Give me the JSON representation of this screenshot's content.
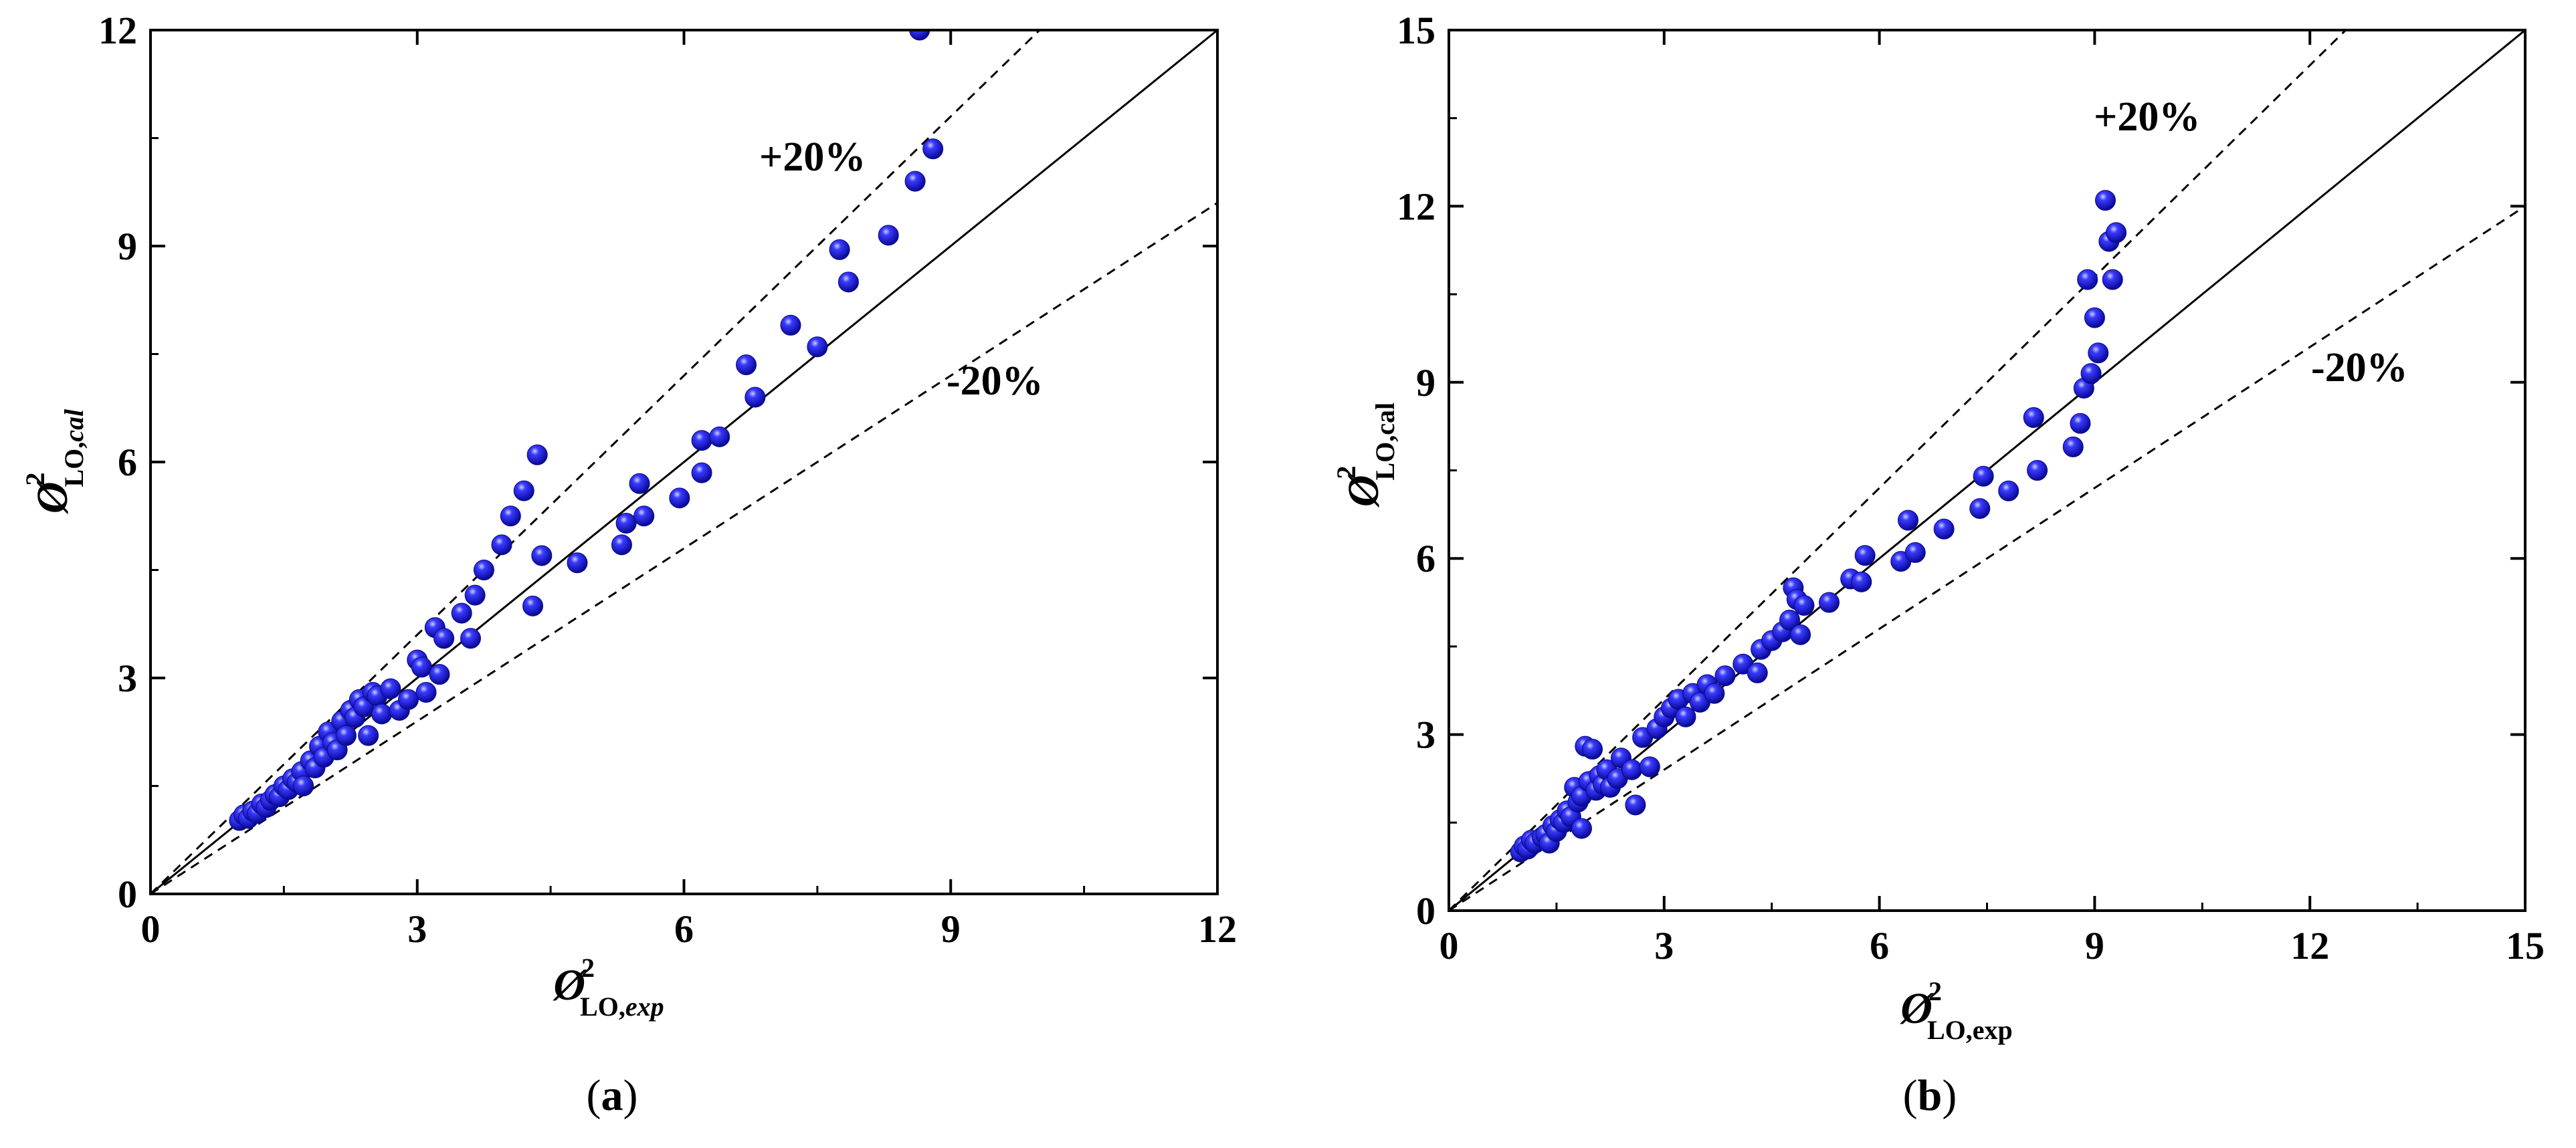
{
  "chart_data": [
    {
      "panel": "a",
      "type": "scatter",
      "caption": "a",
      "xlabel": {
        "symbol": "Ø",
        "sup": "2",
        "sub_main": "LO,",
        "sub_italic": "exp"
      },
      "ylabel": {
        "symbol": "Ø",
        "sup": "2",
        "sub_main": "LO,",
        "sub_italic": "cal"
      },
      "xlim": [
        0,
        12
      ],
      "ylim": [
        0,
        12
      ],
      "xticks": [
        0,
        3,
        6,
        9,
        12
      ],
      "yticks": [
        0,
        3,
        6,
        9,
        12
      ],
      "xtick_labels": [
        "0",
        "3",
        "6",
        "9",
        "12"
      ],
      "ytick_labels": [
        "0",
        "3",
        "6",
        "9",
        "12"
      ],
      "reference_lines": [
        {
          "name": "parity",
          "slope": 1.0,
          "style": "solid"
        },
        {
          "name": "+20%",
          "slope": 1.2,
          "style": "dashed"
        },
        {
          "name": "-20%",
          "slope": 0.8,
          "style": "dashed"
        }
      ],
      "annotations": {
        "plus": "+20%",
        "minus": "-20%"
      },
      "series": [
        {
          "name": "data",
          "color": "#1a1af0",
          "points": [
            [
              1.0,
              1.02
            ],
            [
              1.05,
              1.1
            ],
            [
              1.1,
              1.05
            ],
            [
              1.15,
              1.15
            ],
            [
              1.2,
              1.12
            ],
            [
              1.25,
              1.25
            ],
            [
              1.3,
              1.2
            ],
            [
              1.35,
              1.3
            ],
            [
              1.4,
              1.38
            ],
            [
              1.45,
              1.35
            ],
            [
              1.5,
              1.5
            ],
            [
              1.55,
              1.45
            ],
            [
              1.6,
              1.6
            ],
            [
              1.65,
              1.55
            ],
            [
              1.7,
              1.7
            ],
            [
              1.72,
              1.5
            ],
            [
              1.8,
              1.85
            ],
            [
              1.85,
              1.75
            ],
            [
              1.9,
              2.05
            ],
            [
              1.95,
              1.9
            ],
            [
              2.0,
              2.25
            ],
            [
              2.05,
              2.1
            ],
            [
              2.1,
              2.0
            ],
            [
              2.15,
              2.4
            ],
            [
              2.2,
              2.2
            ],
            [
              2.25,
              2.55
            ],
            [
              2.3,
              2.45
            ],
            [
              2.35,
              2.7
            ],
            [
              2.4,
              2.6
            ],
            [
              2.45,
              2.2
            ],
            [
              2.5,
              2.8
            ],
            [
              2.55,
              2.75
            ],
            [
              2.6,
              2.5
            ],
            [
              2.7,
              2.85
            ],
            [
              2.8,
              2.55
            ],
            [
              2.9,
              2.7
            ],
            [
              3.0,
              3.25
            ],
            [
              3.05,
              3.15
            ],
            [
              3.1,
              2.8
            ],
            [
              3.2,
              3.7
            ],
            [
              3.3,
              3.55
            ],
            [
              3.25,
              3.05
            ],
            [
              3.5,
              3.9
            ],
            [
              3.6,
              3.55
            ],
            [
              3.65,
              4.15
            ],
            [
              3.75,
              4.5
            ],
            [
              3.95,
              4.85
            ],
            [
              4.05,
              5.25
            ],
            [
              4.2,
              5.6
            ],
            [
              4.35,
              6.1
            ],
            [
              4.4,
              4.7
            ],
            [
              4.3,
              4.0
            ],
            [
              4.8,
              4.6
            ],
            [
              5.3,
              4.85
            ],
            [
              5.35,
              5.15
            ],
            [
              5.5,
              5.7
            ],
            [
              5.55,
              5.25
            ],
            [
              5.95,
              5.5
            ],
            [
              6.2,
              5.85
            ],
            [
              6.2,
              6.3
            ],
            [
              6.4,
              6.35
            ],
            [
              6.7,
              7.35
            ],
            [
              6.8,
              6.9
            ],
            [
              7.2,
              7.9
            ],
            [
              7.5,
              7.6
            ],
            [
              7.75,
              8.95
            ],
            [
              7.85,
              8.5
            ],
            [
              8.3,
              9.15
            ],
            [
              8.6,
              9.9
            ],
            [
              8.8,
              10.35
            ],
            [
              8.65,
              12.0
            ]
          ]
        }
      ]
    },
    {
      "panel": "b",
      "type": "scatter",
      "caption": "b",
      "xlabel": {
        "symbol": "Ø",
        "sup": "2",
        "sub_main": "LO,exp",
        "sub_italic": ""
      },
      "ylabel": {
        "symbol": "Ø",
        "sup": "2",
        "sub_main": "LO,cal",
        "sub_italic": ""
      },
      "xlim": [
        0,
        15
      ],
      "ylim": [
        0,
        15
      ],
      "xticks": [
        0,
        3,
        6,
        9,
        12,
        15
      ],
      "yticks": [
        0,
        3,
        6,
        9,
        12,
        15
      ],
      "xtick_labels": [
        "0",
        "3",
        "6",
        "9",
        "12",
        "15"
      ],
      "ytick_labels": [
        "0",
        "3",
        "6",
        "9",
        "12",
        "15"
      ],
      "reference_lines": [
        {
          "name": "parity",
          "slope": 1.0,
          "style": "solid"
        },
        {
          "name": "+20%",
          "slope": 1.2,
          "style": "dashed"
        },
        {
          "name": "-20%",
          "slope": 0.8,
          "style": "dashed"
        }
      ],
      "annotations": {
        "plus": "+20%",
        "minus": "-20%"
      },
      "series": [
        {
          "name": "data",
          "color": "#1a1af0",
          "points": [
            [
              1.0,
              1.0
            ],
            [
              1.05,
              1.1
            ],
            [
              1.1,
              1.05
            ],
            [
              1.15,
              1.2
            ],
            [
              1.2,
              1.15
            ],
            [
              1.3,
              1.25
            ],
            [
              1.35,
              1.3
            ],
            [
              1.4,
              1.15
            ],
            [
              1.45,
              1.45
            ],
            [
              1.5,
              1.35
            ],
            [
              1.55,
              1.55
            ],
            [
              1.6,
              1.5
            ],
            [
              1.65,
              1.7
            ],
            [
              1.7,
              1.6
            ],
            [
              1.75,
              2.1
            ],
            [
              1.8,
              1.85
            ],
            [
              1.85,
              1.95
            ],
            [
              1.85,
              1.4
            ],
            [
              1.9,
              2.8
            ],
            [
              1.95,
              2.2
            ],
            [
              2.0,
              2.75
            ],
            [
              2.05,
              2.05
            ],
            [
              2.1,
              2.3
            ],
            [
              2.15,
              2.15
            ],
            [
              2.2,
              2.4
            ],
            [
              2.25,
              2.1
            ],
            [
              2.35,
              2.25
            ],
            [
              2.4,
              2.6
            ],
            [
              2.55,
              2.4
            ],
            [
              2.6,
              1.8
            ],
            [
              2.7,
              2.95
            ],
            [
              2.8,
              2.45
            ],
            [
              2.9,
              3.1
            ],
            [
              3.0,
              3.3
            ],
            [
              3.1,
              3.45
            ],
            [
              3.2,
              3.6
            ],
            [
              3.3,
              3.3
            ],
            [
              3.4,
              3.7
            ],
            [
              3.5,
              3.55
            ],
            [
              3.6,
              3.85
            ],
            [
              3.7,
              3.7
            ],
            [
              3.85,
              4.0
            ],
            [
              4.1,
              4.2
            ],
            [
              4.3,
              4.05
            ],
            [
              4.35,
              4.45
            ],
            [
              4.5,
              4.6
            ],
            [
              4.65,
              4.75
            ],
            [
              4.75,
              4.95
            ],
            [
              4.8,
              5.5
            ],
            [
              4.85,
              5.3
            ],
            [
              4.95,
              5.2
            ],
            [
              4.9,
              4.7
            ],
            [
              5.3,
              5.25
            ],
            [
              5.6,
              5.65
            ],
            [
              5.75,
              5.6
            ],
            [
              5.8,
              6.05
            ],
            [
              6.3,
              5.95
            ],
            [
              6.4,
              6.65
            ],
            [
              6.5,
              6.1
            ],
            [
              6.9,
              6.5
            ],
            [
              7.4,
              6.85
            ],
            [
              7.45,
              7.4
            ],
            [
              7.8,
              7.15
            ],
            [
              8.15,
              8.4
            ],
            [
              8.2,
              7.5
            ],
            [
              8.7,
              7.9
            ],
            [
              8.8,
              8.3
            ],
            [
              8.85,
              8.9
            ],
            [
              8.9,
              10.75
            ],
            [
              8.95,
              9.15
            ],
            [
              9.0,
              10.1
            ],
            [
              9.05,
              9.5
            ],
            [
              9.15,
              12.1
            ],
            [
              9.2,
              11.4
            ],
            [
              9.25,
              10.75
            ],
            [
              9.3,
              11.55
            ]
          ]
        }
      ]
    }
  ]
}
